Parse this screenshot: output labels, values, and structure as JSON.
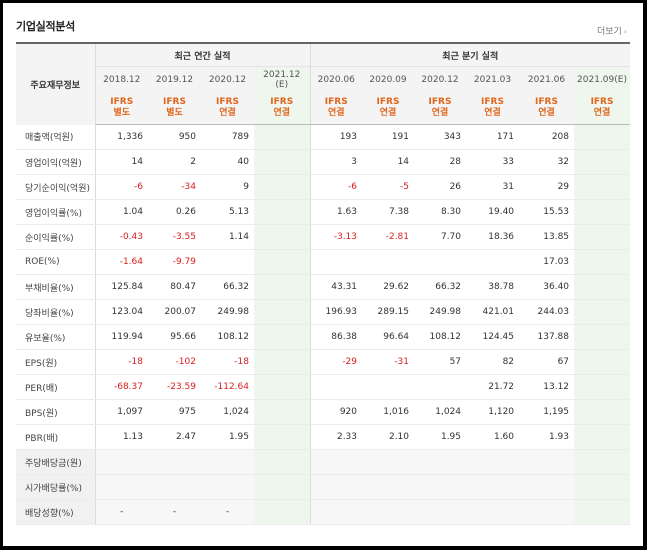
{
  "section_title": "기업실적분석",
  "more_link": "더보기",
  "more_chevron": "›",
  "header": {
    "label_column": "주요재무정보",
    "annual_group": "최근 연간 실적",
    "quarterly_group": "최근 분기 실적",
    "dates": [
      "2018.12",
      "2019.12",
      "2020.12",
      "2021.12",
      "2020.06",
      "2020.09",
      "2020.12",
      "2021.03",
      "2021.06",
      "2021.09"
    ],
    "estimate_marks": [
      "",
      "",
      "",
      "(E)",
      "",
      "",
      "",
      "",
      "",
      "(E)"
    ],
    "std_top": [
      "IFRS",
      "IFRS",
      "IFRS",
      "IFRS",
      "IFRS",
      "IFRS",
      "IFRS",
      "IFRS",
      "IFRS",
      "IFRS"
    ],
    "std_bottom": [
      "별도",
      "별도",
      "연결",
      "연결",
      "연결",
      "연결",
      "연결",
      "연결",
      "연결",
      "연결"
    ]
  },
  "rows": [
    {
      "label": "매출액(억원)",
      "values": [
        "1,336",
        "950",
        "789",
        "",
        "193",
        "191",
        "343",
        "171",
        "208",
        ""
      ]
    },
    {
      "label": "영업이익(억원)",
      "values": [
        "14",
        "2",
        "40",
        "",
        "3",
        "14",
        "28",
        "33",
        "32",
        ""
      ]
    },
    {
      "label": "당기순이익(억원)",
      "values": [
        "-6",
        "-34",
        "9",
        "",
        "-6",
        "-5",
        "26",
        "31",
        "29",
        ""
      ]
    },
    {
      "label": "영업이익률(%)",
      "values": [
        "1.04",
        "0.26",
        "5.13",
        "",
        "1.63",
        "7.38",
        "8.30",
        "19.40",
        "15.53",
        ""
      ]
    },
    {
      "label": "순이익률(%)",
      "values": [
        "-0.43",
        "-3.55",
        "1.14",
        "",
        "-3.13",
        "-2.81",
        "7.70",
        "18.36",
        "13.85",
        ""
      ]
    },
    {
      "label": "ROE(%)",
      "values": [
        "-1.64",
        "-9.79",
        "",
        "",
        "",
        "",
        "",
        "",
        "17.03",
        ""
      ]
    },
    {
      "label": "부채비율(%)",
      "values": [
        "125.84",
        "80.47",
        "66.32",
        "",
        "43.31",
        "29.62",
        "66.32",
        "38.78",
        "36.40",
        ""
      ]
    },
    {
      "label": "당좌비율(%)",
      "values": [
        "123.04",
        "200.07",
        "249.98",
        "",
        "196.93",
        "289.15",
        "249.98",
        "421.01",
        "244.03",
        ""
      ]
    },
    {
      "label": "유보율(%)",
      "values": [
        "119.94",
        "95.66",
        "108.12",
        "",
        "86.38",
        "96.64",
        "108.12",
        "124.45",
        "137.88",
        ""
      ]
    },
    {
      "label": "EPS(원)",
      "values": [
        "-18",
        "-102",
        "-18",
        "",
        "-29",
        "-31",
        "57",
        "82",
        "67",
        ""
      ]
    },
    {
      "label": "PER(배)",
      "values": [
        "-68.37",
        "-23.59",
        "-112.64",
        "",
        "",
        "",
        "",
        "21.72",
        "13.12",
        ""
      ]
    },
    {
      "label": "BPS(원)",
      "values": [
        "1,097",
        "975",
        "1,024",
        "",
        "920",
        "1,016",
        "1,024",
        "1,120",
        "1,195",
        ""
      ]
    },
    {
      "label": "PBR(배)",
      "values": [
        "1.13",
        "2.47",
        "1.95",
        "",
        "2.33",
        "2.10",
        "1.95",
        "1.60",
        "1.93",
        ""
      ]
    },
    {
      "label": "주당배당금(원)",
      "values": [
        "",
        "",
        "",
        "",
        "",
        "",
        "",
        "",
        "",
        ""
      ]
    },
    {
      "label": "시가배당률(%)",
      "values": [
        "",
        "",
        "",
        "",
        "",
        "",
        "",
        "",
        "",
        ""
      ]
    },
    {
      "label": "배당성향(%)",
      "values": [
        "-",
        "-",
        "-",
        "",
        "",
        "",
        "",
        "",
        "",
        ""
      ]
    }
  ],
  "colors": {
    "negative": "#d8201f",
    "standard": "#e2651b",
    "estimate_bg": "#eef6ee"
  }
}
